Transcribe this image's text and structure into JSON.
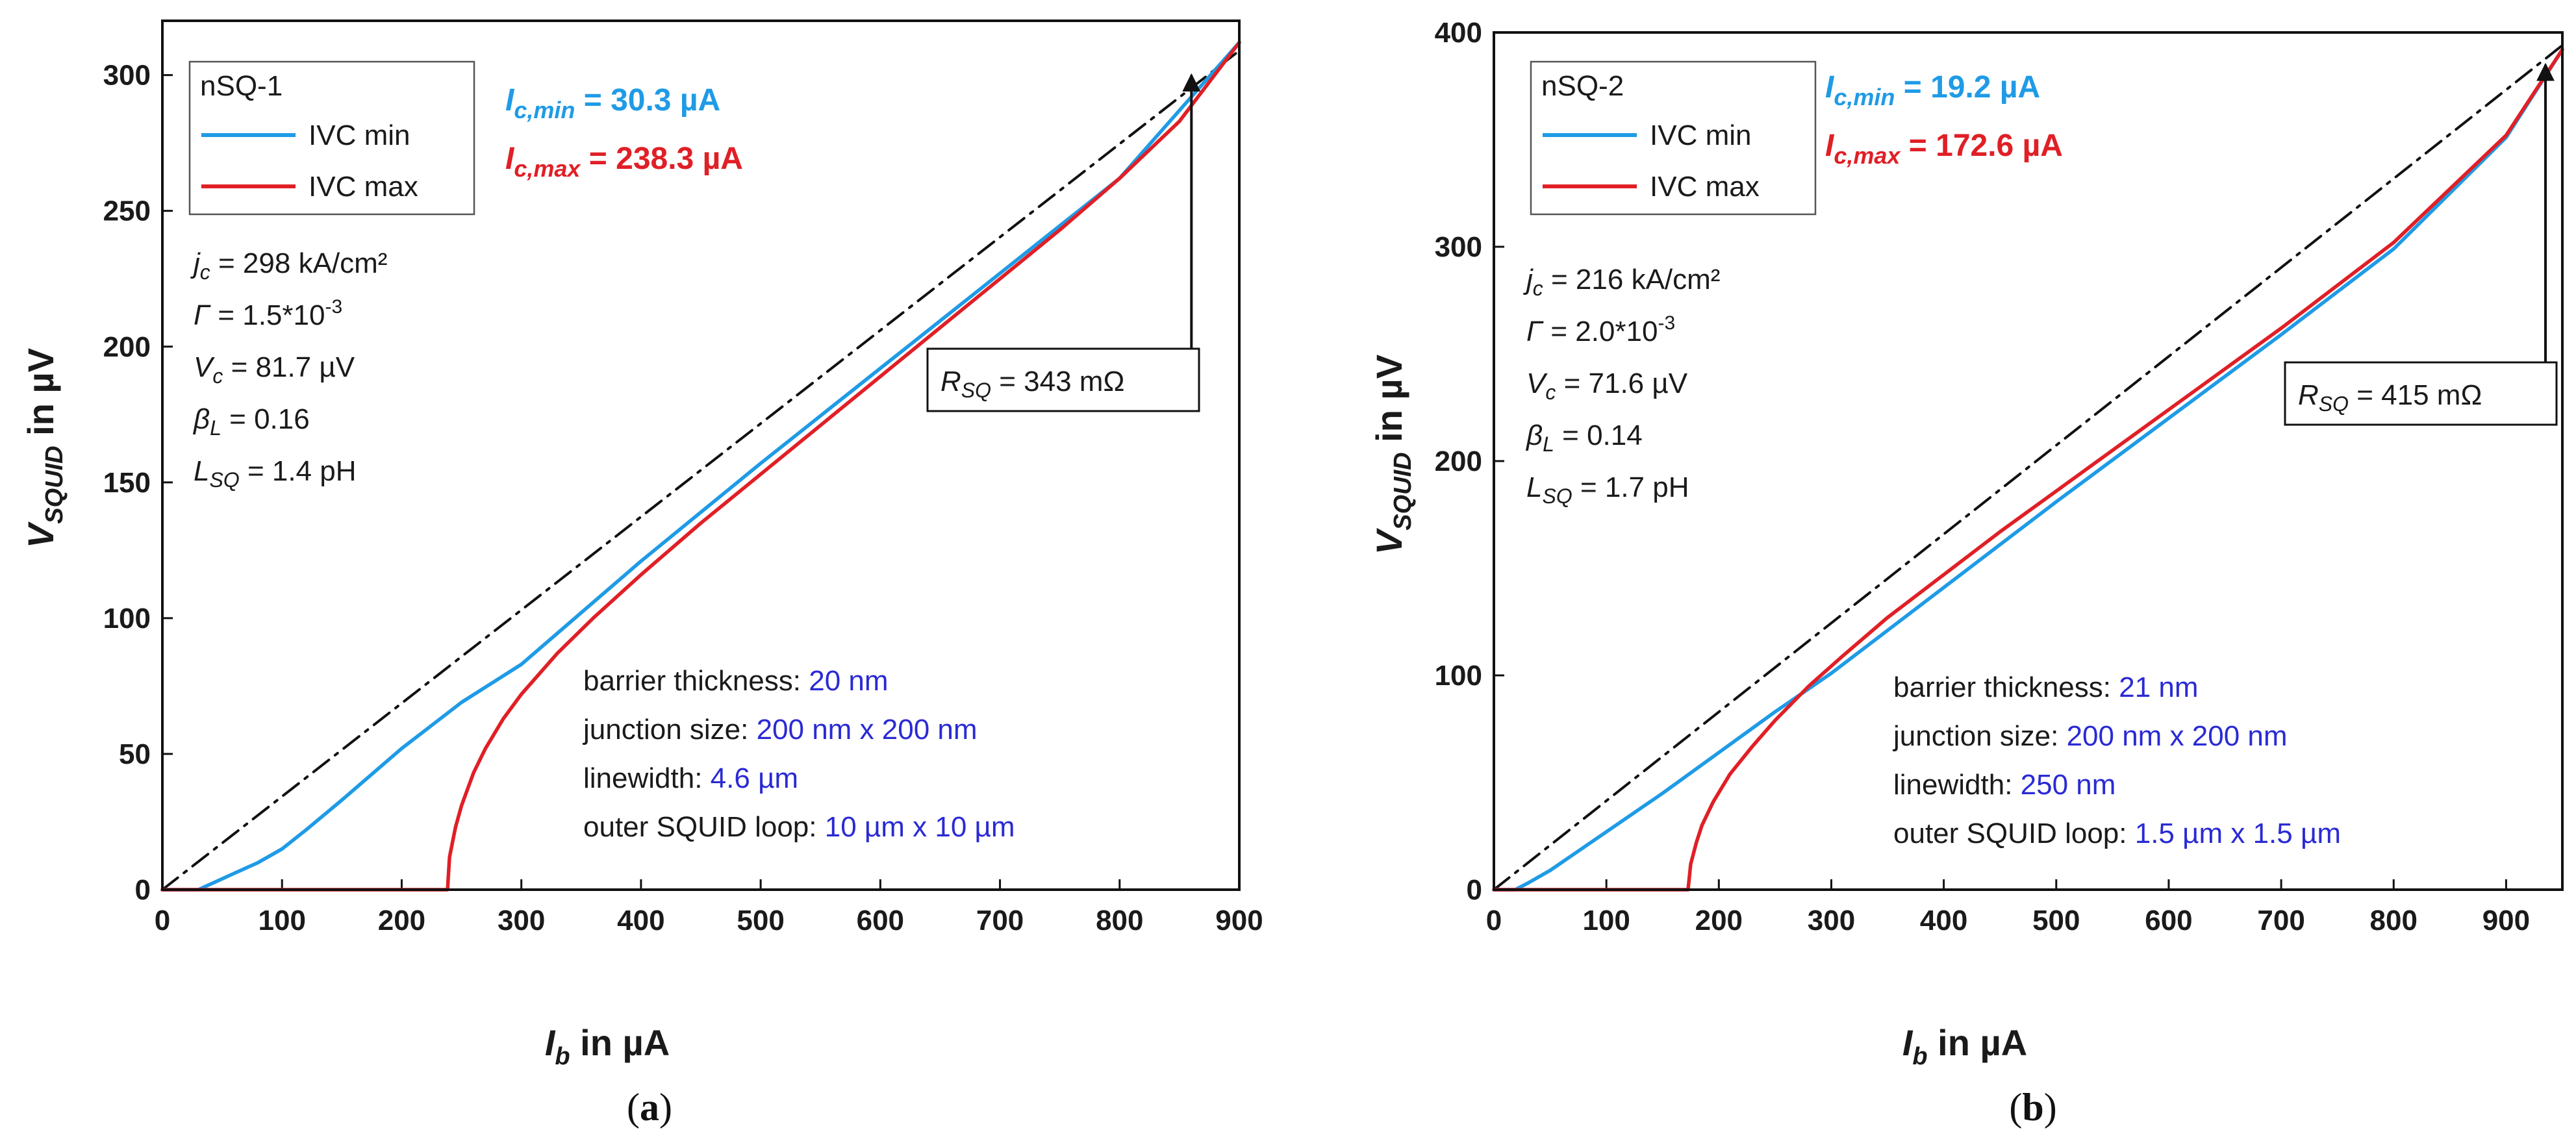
{
  "colors": {
    "ivc_min": "#1f9be6",
    "ivc_max": "#e01f26",
    "ohmic": "#111111",
    "spec_value": "#2a2ad4"
  },
  "chart_data": [
    {
      "type": "line",
      "panel_label": "a",
      "xlabel_sym": "I",
      "xlabel_sub": "b",
      "xlabel_unit": " in µA",
      "ylabel_sym": "V",
      "ylabel_sub": "SQUID",
      "ylabel_unit": " in µV",
      "xlim": [
        0,
        900
      ],
      "ylim": [
        0,
        320
      ],
      "xticks": [
        0,
        100,
        200,
        300,
        400,
        500,
        600,
        700,
        800,
        900
      ],
      "yticks": [
        0,
        50,
        100,
        150,
        200,
        250,
        300
      ],
      "legend": {
        "title": "nSQ-1",
        "entries": [
          "IVC min",
          "IVC max"
        ]
      },
      "ic_min": {
        "sym": "I",
        "sub": "c,min",
        "value": " = 30.3 µA"
      },
      "ic_max": {
        "sym": "I",
        "sub": "c,max",
        "value": " = 238.3 µA"
      },
      "params": {
        "jc": " = 298 kA/cm²",
        "gamma": " = 1.5*10",
        "gamma_exp": "-3",
        "vc": " = 81.7 µV",
        "betaL": " = 0.16",
        "lsq": " = 1.4 pH"
      },
      "rsq": {
        "sym": "R",
        "sub": "SQ",
        "value": " = 343 mΩ"
      },
      "rsq_arrow": {
        "x": 860,
        "y_from": 197,
        "y_to": 300
      },
      "specs": [
        {
          "label": "barrier thickness: ",
          "value": "20 nm"
        },
        {
          "label": "junction size: ",
          "value": "200 nm x 200 nm"
        },
        {
          "label": "linewidth: ",
          "value": "4.6 µm"
        },
        {
          "label": "outer SQUID loop: ",
          "value": "10 µm x 10 µm"
        }
      ],
      "series": [
        {
          "name": "IVC min",
          "ic": 30.3,
          "x": [
            0,
            30,
            40,
            60,
            80,
            100,
            120,
            150,
            200,
            250,
            300,
            400,
            500,
            600,
            700,
            800,
            900
          ],
          "y": [
            0,
            0,
            2,
            6,
            10,
            15,
            22,
            33,
            52,
            69,
            83,
            121,
            157,
            192,
            227,
            262,
            312
          ]
        },
        {
          "name": "IVC max",
          "ic": 238.3,
          "x": [
            0,
            238.3,
            240,
            245,
            250,
            260,
            270,
            285,
            300,
            330,
            360,
            400,
            450,
            500,
            550,
            600,
            650,
            700,
            750,
            800,
            850,
            900
          ],
          "y": [
            0,
            0,
            12,
            23,
            31,
            43,
            52,
            63,
            72,
            87,
            100,
            116,
            135,
            153,
            171,
            189,
            207,
            225,
            243,
            262,
            283,
            312
          ]
        },
        {
          "name": "Ohmic R_SQ",
          "style": "dashdot",
          "x": [
            0,
            900
          ],
          "y": [
            0,
            309
          ]
        }
      ]
    },
    {
      "type": "line",
      "panel_label": "b",
      "xlabel_sym": "I",
      "xlabel_sub": "b",
      "xlabel_unit": " in µA",
      "ylabel_sym": "V",
      "ylabel_sub": "SQUID",
      "ylabel_unit": " in µV",
      "xlim": [
        0,
        950
      ],
      "ylim": [
        0,
        400
      ],
      "xticks": [
        0,
        100,
        200,
        300,
        400,
        500,
        600,
        700,
        800,
        900
      ],
      "yticks": [
        0,
        100,
        200,
        300,
        400
      ],
      "legend": {
        "title": "nSQ-2",
        "entries": [
          "IVC min",
          "IVC max"
        ]
      },
      "ic_min": {
        "sym": "I",
        "sub": "c,min",
        "value": " = 19.2 µA"
      },
      "ic_max": {
        "sym": "I",
        "sub": "c,max",
        "value": " = 172.6 µA"
      },
      "params": {
        "jc": " = 216 kA/cm²",
        "gamma": " = 2.0*10",
        "gamma_exp": "-3",
        "vc": " = 71.6 µV",
        "betaL": " = 0.14",
        "lsq": " = 1.7 pH"
      },
      "rsq": {
        "sym": "R",
        "sub": "SQ",
        "value": " = 415 mΩ"
      },
      "rsq_arrow": {
        "x": 935,
        "y_from": 227,
        "y_to": 385
      },
      "specs": [
        {
          "label": "barrier thickness: ",
          "value": "21 nm"
        },
        {
          "label": "junction size: ",
          "value": "200 nm x 200 nm"
        },
        {
          "label": "linewidth: ",
          "value": "250 nm"
        },
        {
          "label": "outer SQUID loop: ",
          "value": "1.5 µm x 1.5 µm"
        }
      ],
      "series": [
        {
          "name": "IVC min",
          "ic": 19.2,
          "x": [
            0,
            19,
            30,
            50,
            75,
            100,
            150,
            200,
            250,
            300,
            400,
            500,
            600,
            700,
            800,
            900,
            950
          ],
          "y": [
            0,
            0,
            3,
            9,
            18,
            27,
            45,
            64,
            83,
            101,
            141,
            181,
            220,
            259,
            299,
            351,
            392
          ]
        },
        {
          "name": "IVC max",
          "ic": 172.6,
          "x": [
            0,
            172.6,
            175,
            180,
            185,
            195,
            210,
            230,
            250,
            280,
            310,
            350,
            400,
            450,
            500,
            600,
            700,
            800,
            900,
            950
          ],
          "y": [
            0,
            0,
            12,
            22,
            30,
            41,
            54,
            67,
            79,
            95,
            109,
            127,
            147,
            167,
            186,
            224,
            262,
            302,
            352,
            392
          ]
        },
        {
          "name": "Ohmic R_SQ",
          "style": "dashdot",
          "x": [
            0,
            950
          ],
          "y": [
            0,
            394
          ]
        }
      ]
    }
  ]
}
